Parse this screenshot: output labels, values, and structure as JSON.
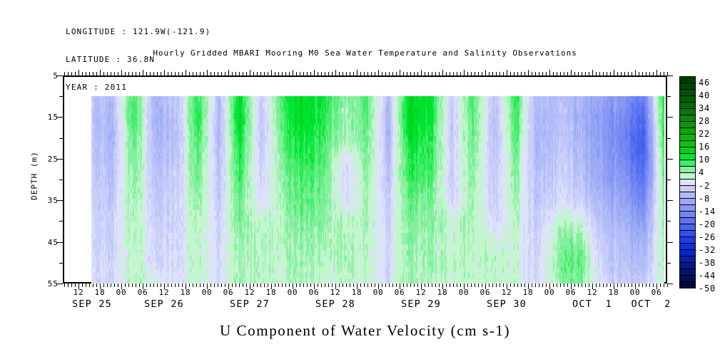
{
  "header": {
    "longitude": "LONGITUDE : 121.9W(-121.9)",
    "latitude": "LATITUDE : 36.8N",
    "year": "YEAR : 2011"
  },
  "chart_title": "Hourly Gridded MBARI Mooring M0 Sea Water Temperature and Salinity Observations",
  "bottom_title": "U Component of Water Velocity (cm s-1)",
  "chart_data": {
    "type": "heatmap",
    "title": "Hourly Gridded MBARI Mooring M0 Sea Water Temperature and Salinity Observations",
    "variable": "U Component of Water Velocity",
    "units": "cm s-1",
    "xlabel": "Time, 6-hourly ticks from SEP 25 12:00 to OCT 2 06:00, year 2011",
    "ylabel": "DEPTH (m)",
    "y_axis_range_m": [
      5,
      55
    ],
    "y_tick_labels": [
      "5",
      "15",
      "25",
      "35",
      "45",
      "55"
    ],
    "y_tick_depths": [
      5,
      15,
      25,
      35,
      45,
      55
    ],
    "y_minor_tick_depths": [
      10,
      20,
      30,
      40,
      50
    ],
    "x_tick_labels": [
      "12",
      "18",
      "00",
      "06",
      "12",
      "18",
      "00",
      "06",
      "12",
      "18",
      "00",
      "06",
      "12",
      "18",
      "00",
      "06",
      "12",
      "18",
      "00",
      "06",
      "12",
      "18",
      "00",
      "06",
      "12",
      "18",
      "00",
      "06"
    ],
    "x_date_labels": [
      "SEP 25",
      "SEP 26",
      "SEP 27",
      "SEP 28",
      "SEP 29",
      "SEP 30",
      "OCT  1",
      "OCT  2"
    ],
    "grid": false,
    "legend_position": "right-colorbar",
    "colorbar": {
      "tick_labels": [
        "46",
        "40",
        "34",
        "28",
        "22",
        "16",
        "10",
        "4",
        "-2",
        "-8",
        "-14",
        "-20",
        "-26",
        "-32",
        "-38",
        "-44",
        "-50"
      ],
      "max": 49,
      "min": -50,
      "cell_step": 3,
      "colors": [
        "#013a01",
        "#024502",
        "#035103",
        "#045d04",
        "#056a05",
        "#067806",
        "#078607",
        "#089508",
        "#09a509",
        "#0ab50a",
        "#0bc50b",
        "#00d41c",
        "#00e532",
        "#44ec6a",
        "#84f09e",
        "#c2f6cc",
        "#dfe2fc",
        "#c9cefa",
        "#b2bcf8",
        "#9cabf6",
        "#8799f4",
        "#7287f2",
        "#5d74f0",
        "#4862ee",
        "#334fec",
        "#1e3dea",
        "#0c2fe0",
        "#0828c4",
        "#0721a8",
        "#061a8c",
        "#041370",
        "#030c54",
        "#02063a"
      ]
    },
    "data_depths_m": [
      10,
      15,
      20,
      25,
      30,
      35,
      40,
      45,
      50,
      55
    ],
    "data_time_columns": "6-hourly estimates from SEP 25 ~15:00 to OCT 2 ~08:00",
    "values": [
      [
        -4,
        -6,
        9,
        -7,
        -5,
        11,
        -6,
        13,
        -4,
        10,
        14,
        11,
        4,
        8,
        -6,
        13,
        12,
        -3,
        8,
        -5,
        10,
        -7,
        -6,
        -8,
        -10,
        -12,
        -18,
        12
      ],
      [
        -5,
        -7,
        10,
        -8,
        -6,
        12,
        -7,
        14,
        -5,
        9,
        14,
        10,
        3,
        8,
        -7,
        14,
        11,
        -4,
        8,
        -6,
        9,
        -8,
        -6,
        -8,
        -12,
        -14,
        -21,
        11
      ],
      [
        -4,
        -7,
        8,
        -7,
        -6,
        10,
        -7,
        12,
        -5,
        8,
        12,
        9,
        3,
        7,
        -7,
        12,
        10,
        -4,
        7,
        -6,
        8,
        -8,
        -5,
        -7,
        -12,
        -15,
        -23,
        10
      ],
      [
        -4,
        -6,
        7,
        -6,
        -5,
        9,
        -6,
        10,
        -4,
        7,
        11,
        8,
        -2,
        6,
        -6,
        10,
        9,
        -3,
        6,
        -5,
        6,
        -7,
        -4,
        -6,
        -11,
        -14,
        -22,
        8
      ],
      [
        -3,
        -5,
        6,
        -5,
        -4,
        8,
        -5,
        9,
        -3,
        6,
        9,
        7,
        -3,
        5,
        -5,
        9,
        8,
        -3,
        5,
        -4,
        5,
        -6,
        -3,
        -5,
        -10,
        -12,
        -19,
        7
      ],
      [
        -3,
        -4,
        5,
        -4,
        -3,
        6,
        -4,
        7,
        -2,
        5,
        8,
        6,
        -2,
        4,
        -4,
        7,
        6,
        -2,
        4,
        -3,
        4,
        -5,
        -2,
        -3,
        -8,
        -10,
        -16,
        6
      ],
      [
        -2,
        -3,
        4,
        -3,
        -3,
        5,
        -3,
        6,
        2,
        4,
        7,
        5,
        2,
        4,
        -3,
        6,
        5,
        2,
        4,
        -2,
        3,
        -4,
        2,
        2,
        -6,
        -8,
        -12,
        5
      ],
      [
        -2,
        -3,
        4,
        -2,
        -2,
        4,
        -2,
        5,
        3,
        4,
        5,
        4,
        3,
        3,
        -2,
        5,
        4,
        2,
        3,
        2,
        2,
        -3,
        4,
        6,
        -4,
        -6,
        -9,
        4
      ],
      [
        -1,
        -2,
        3,
        -2,
        -2,
        4,
        -2,
        4,
        3,
        3,
        5,
        3,
        3,
        3,
        -2,
        4,
        4,
        3,
        3,
        3,
        2,
        -3,
        5,
        8,
        -3,
        -5,
        -7,
        4
      ],
      [
        -1,
        -2,
        3,
        2,
        -1,
        3,
        -1,
        4,
        2,
        3,
        4,
        2,
        2,
        2,
        -1,
        4,
        3,
        2,
        2,
        3,
        2,
        -2,
        4,
        6,
        -2,
        -4,
        -5,
        3
      ]
    ]
  }
}
